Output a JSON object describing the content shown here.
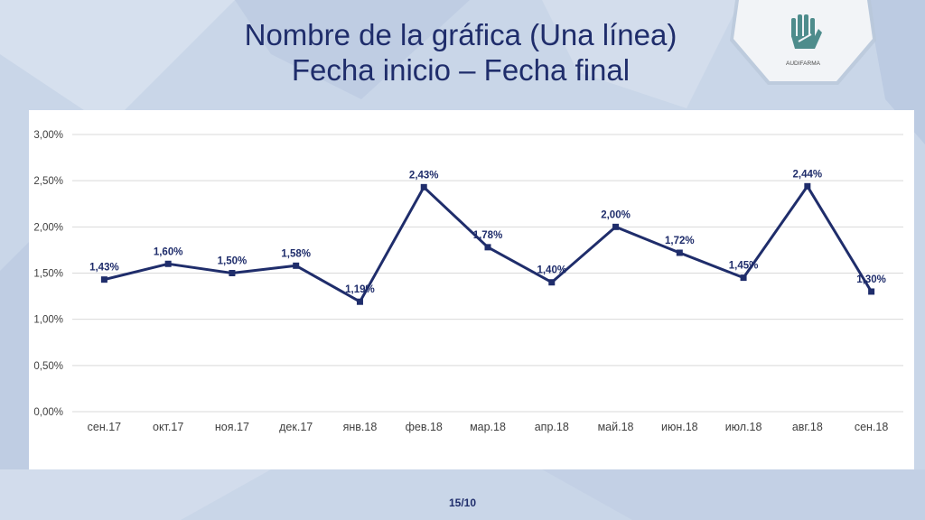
{
  "slide": {
    "title_line1": "Nombre de la gráfica (Una línea)",
    "title_line2": "Fecha inicio – Fecha final",
    "logo_text": "AUDIFARMA",
    "page_number": "15/10"
  },
  "colors": {
    "title": "#1f2d6b",
    "series": "#1f2d6b",
    "grid": "#d9d9d9",
    "background": "#c9d6e8"
  },
  "chart_data": {
    "type": "line",
    "title": "",
    "xlabel": "",
    "ylabel": "",
    "categories": [
      "сен.17",
      "окт.17",
      "ноя.17",
      "дек.17",
      "янв.18",
      "фев.18",
      "мар.18",
      "апр.18",
      "май.18",
      "июн.18",
      "июл.18",
      "авг.18",
      "сен.18"
    ],
    "values": [
      1.43,
      1.6,
      1.5,
      1.58,
      1.19,
      2.43,
      1.78,
      1.4,
      2.0,
      1.72,
      1.45,
      2.44,
      1.3
    ],
    "data_labels": [
      "1,43%",
      "1,60%",
      "1,50%",
      "1,58%",
      "1,19%",
      "2,43%",
      "1,78%",
      "1,40%",
      "2,00%",
      "1,72%",
      "1,45%",
      "2,44%",
      "1,30%"
    ],
    "y_ticks": [
      0,
      0.5,
      1.0,
      1.5,
      2.0,
      2.5,
      3.0
    ],
    "y_tick_labels": [
      "0,00%",
      "0,50%",
      "1,00%",
      "1,50%",
      "2,00%",
      "2,50%",
      "3,00%"
    ],
    "ylim": [
      0,
      3.0
    ],
    "grid": true,
    "legend": "none"
  }
}
